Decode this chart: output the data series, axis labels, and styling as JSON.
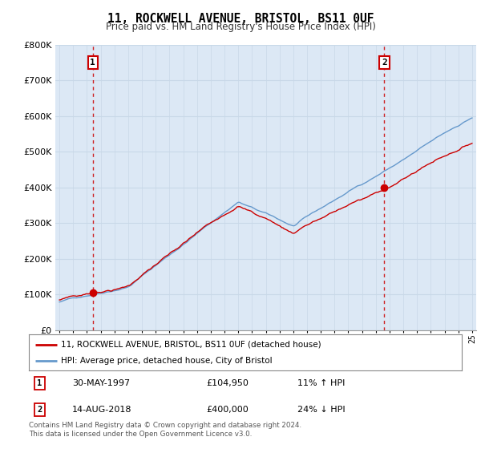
{
  "title": "11, ROCKWELL AVENUE, BRISTOL, BS11 0UF",
  "subtitle": "Price paid vs. HM Land Registry's House Price Index (HPI)",
  "sale1_price": 104950,
  "sale1_label": "1",
  "sale1_hpi_diff": "11% ↑ HPI",
  "sale1_date_str": "30-MAY-1997",
  "sale2_price": 400000,
  "sale2_label": "2",
  "sale2_hpi_diff": "24% ↓ HPI",
  "sale2_date_str": "14-AUG-2018",
  "house_color": "#cc0000",
  "hpi_color": "#6699cc",
  "background_color": "#dce8f5",
  "grid_color": "#c8d8e8",
  "legend_house": "11, ROCKWELL AVENUE, BRISTOL, BS11 0UF (detached house)",
  "legend_hpi": "HPI: Average price, detached house, City of Bristol",
  "footer": "Contains HM Land Registry data © Crown copyright and database right 2024.\nThis data is licensed under the Open Government Licence v3.0.",
  "ylim": [
    0,
    800000
  ],
  "yticks": [
    0,
    100000,
    200000,
    300000,
    400000,
    500000,
    600000,
    700000,
    800000
  ],
  "sale1_year": 1997.42,
  "sale2_year": 2018.62
}
